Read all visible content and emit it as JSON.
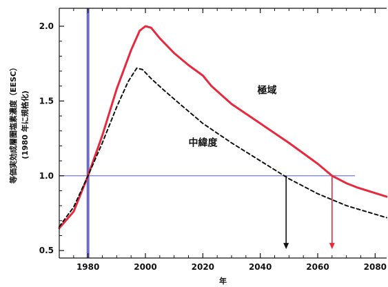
{
  "chart_data": {
    "type": "line",
    "xlabel": "年",
    "ylabel": "等価実効成層圏塩素濃度（EESC）",
    "ylabel_sub": "(1980 年に規格化)",
    "xlim": [
      1970,
      2084
    ],
    "ylim": [
      0.45,
      2.12
    ],
    "xticks": [
      1980,
      2000,
      2020,
      2040,
      2060,
      2080
    ],
    "yticks": [
      0.5,
      1.0,
      1.5,
      2.0
    ],
    "xtick_labels": [
      "1980",
      "2000",
      "2020",
      "2040",
      "2060",
      "2080"
    ],
    "ytick_labels": [
      "0.5",
      "1.0",
      "1.5",
      "2.0"
    ],
    "grid": false,
    "legend": "none",
    "series": [
      {
        "name": "極域",
        "style": "solid",
        "color": "#e8283c",
        "x": [
          1970,
          1975,
          1980,
          1985,
          1990,
          1995,
          1998,
          2000,
          2002,
          2005,
          2010,
          2015,
          2020,
          2023,
          2030,
          2040,
          2050,
          2060,
          2065,
          2070,
          2074,
          2084
        ],
        "y": [
          0.65,
          0.76,
          1.0,
          1.27,
          1.58,
          1.84,
          1.97,
          2.0,
          1.99,
          1.92,
          1.82,
          1.74,
          1.67,
          1.6,
          1.48,
          1.35,
          1.22,
          1.08,
          1.0,
          0.95,
          0.92,
          0.86
        ]
      },
      {
        "name": "中緯度",
        "style": "dashed",
        "color": "#111111",
        "x": [
          1970,
          1975,
          1980,
          1985,
          1990,
          1994,
          1997,
          1999,
          2002,
          2006,
          2012,
          2020,
          2030,
          2040,
          2050,
          2060,
          2070,
          2084
        ],
        "y": [
          0.66,
          0.79,
          1.0,
          1.22,
          1.46,
          1.63,
          1.72,
          1.71,
          1.65,
          1.58,
          1.48,
          1.35,
          1.22,
          1.1,
          0.98,
          0.88,
          0.8,
          0.72
        ]
      }
    ],
    "reference_lines": [
      {
        "orientation": "horizontal",
        "y": 1.0,
        "x_from": 1970,
        "x_to": 2073,
        "color": "#7b78cc"
      },
      {
        "orientation": "vertical",
        "x": 1980,
        "color": "#6d6cc8"
      }
    ],
    "arrows": [
      {
        "x": 2049,
        "y_from": 1.0,
        "y_to": 0.5,
        "color": "#111111"
      },
      {
        "x": 2065,
        "y_from": 1.0,
        "y_to": 0.5,
        "color": "#e8283c"
      }
    ],
    "annotations": [
      {
        "text": "極域",
        "x": 2039,
        "y": 1.55
      },
      {
        "text": "中緯度",
        "x": 2015,
        "y": 1.2
      }
    ]
  }
}
